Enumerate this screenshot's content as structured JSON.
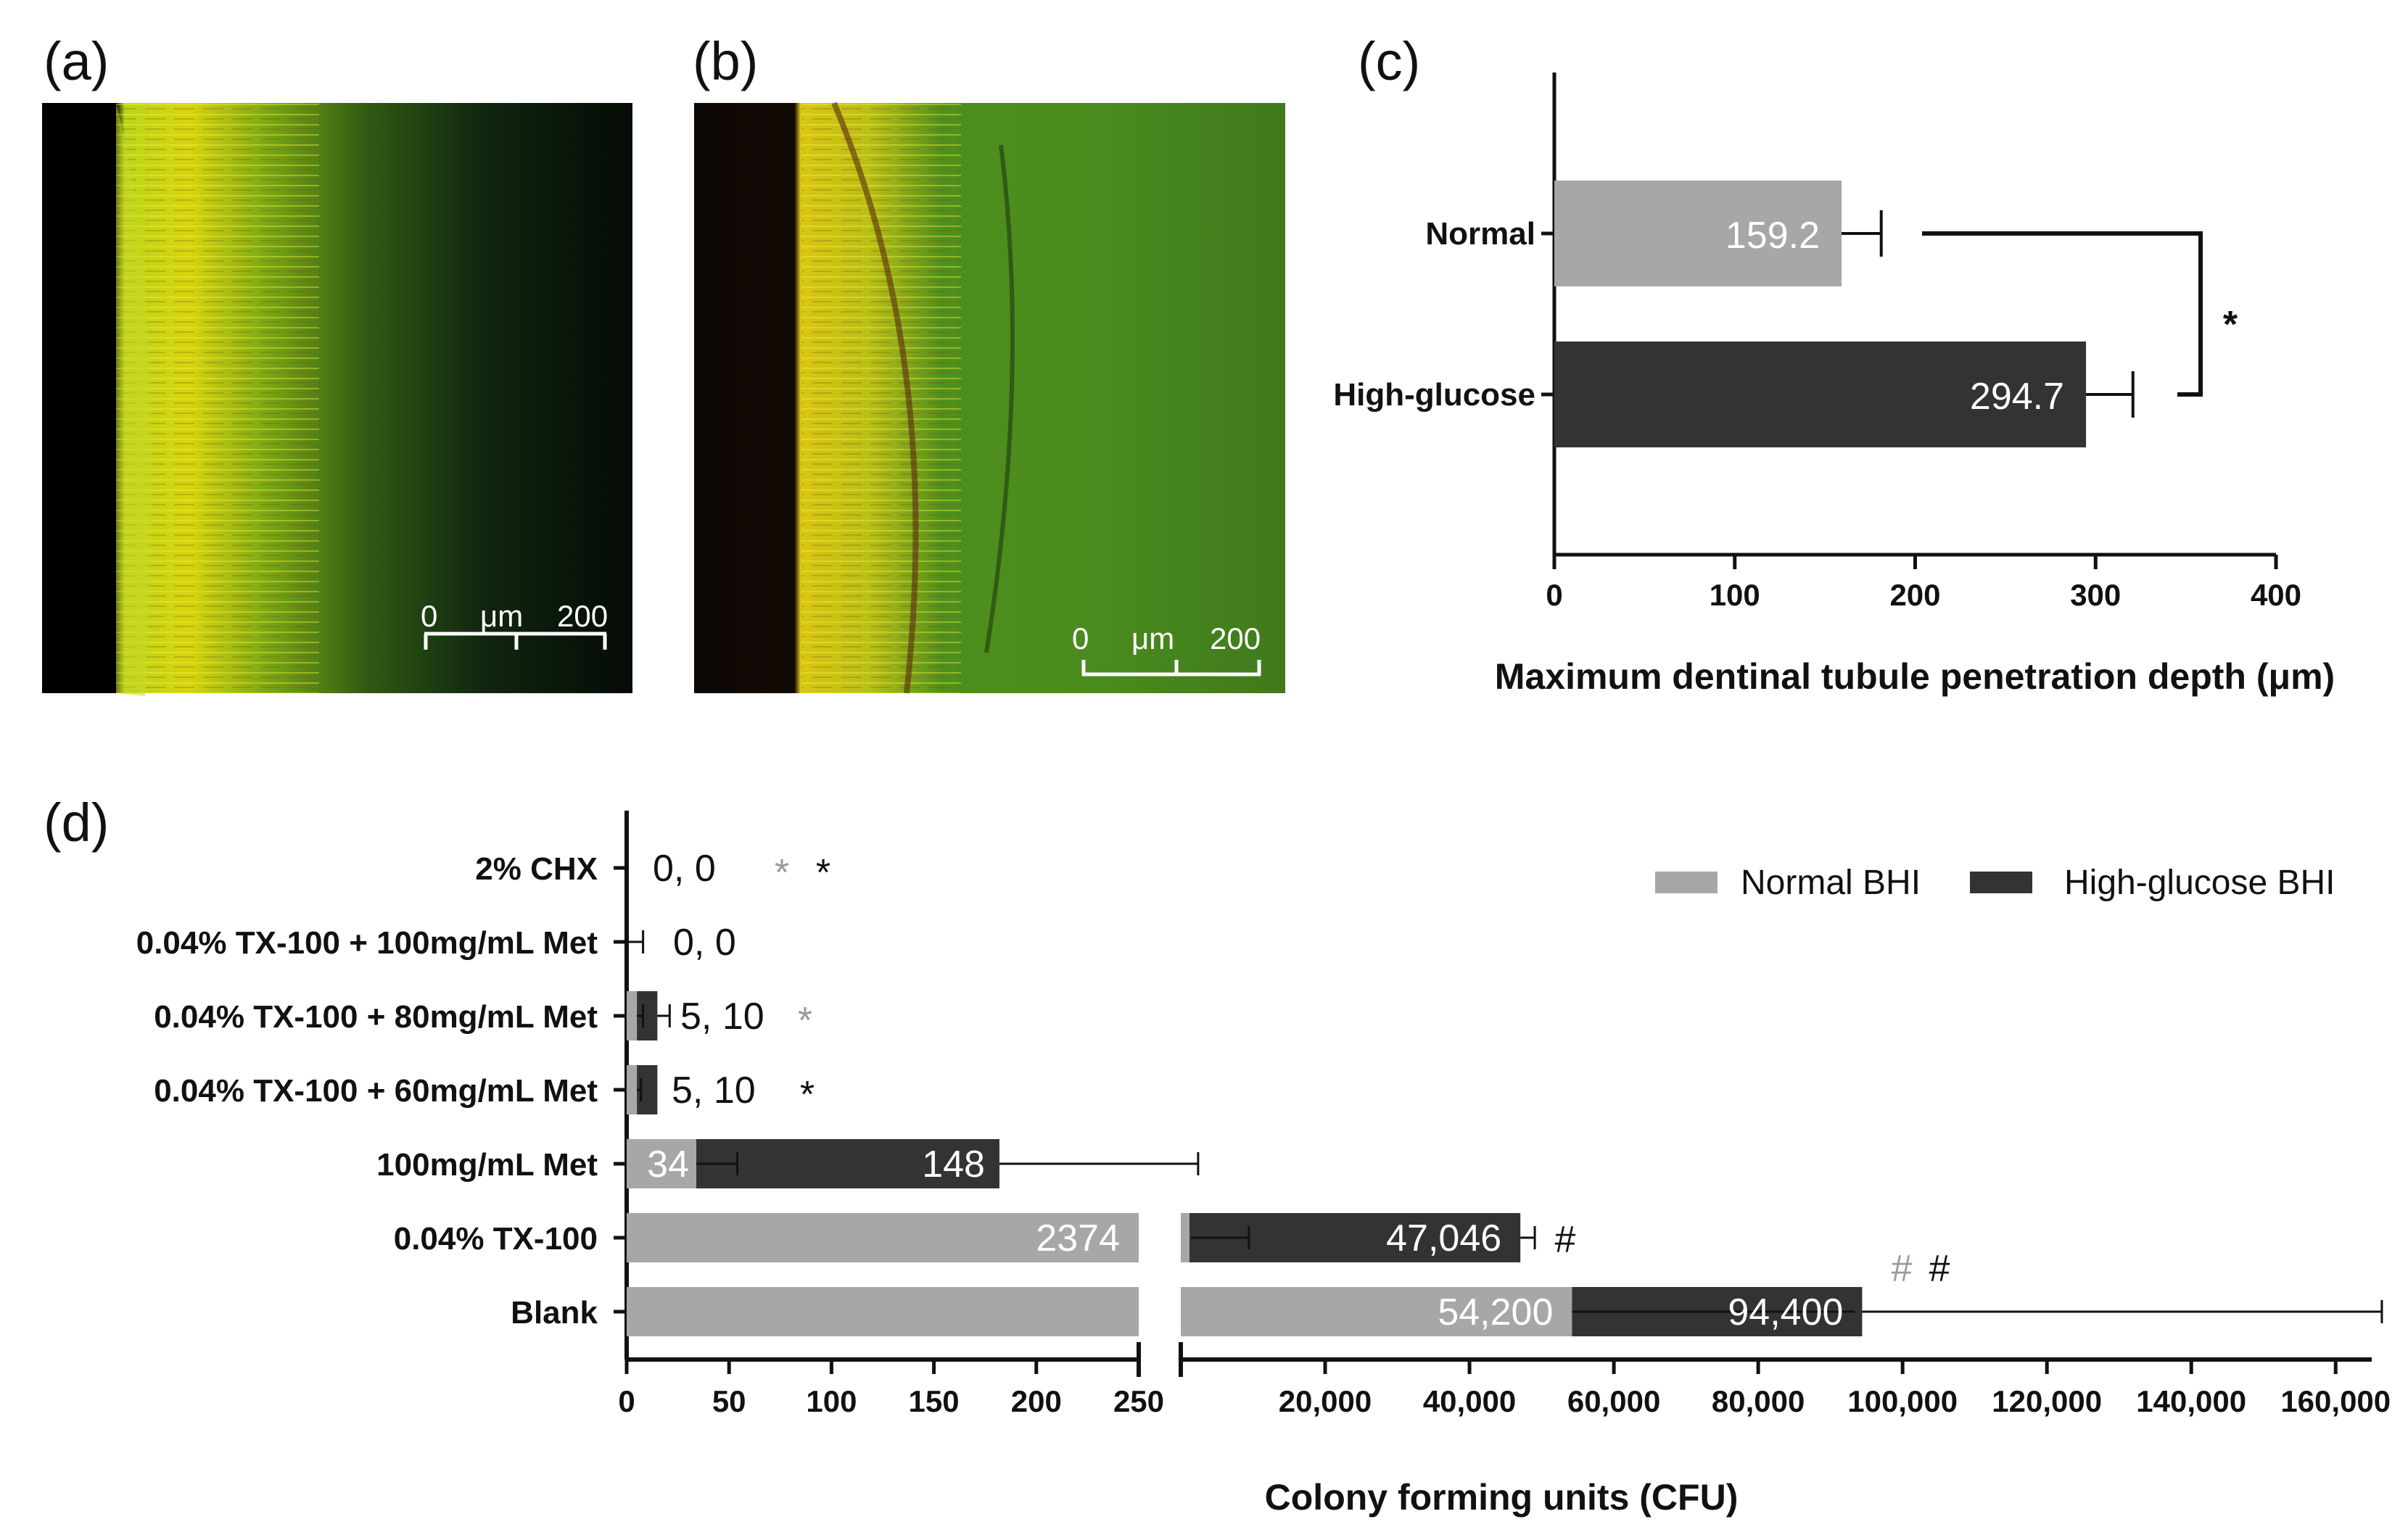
{
  "panels": {
    "a": "(a)",
    "b": "(b)",
    "c": "(c)",
    "d": "(d)"
  },
  "micrographs": [
    {
      "panel": "a",
      "scale_bar": {
        "start": "0",
        "unit": "μm",
        "end": "200"
      }
    },
    {
      "panel": "b",
      "scale_bar": {
        "start": "0",
        "unit": "μm",
        "end": "200"
      }
    }
  ],
  "colors": {
    "normal": "#a7a7a7",
    "high": "#333333",
    "axis": "#111111",
    "gray_mark": "#9a9a9a",
    "dark_mark": "#111111"
  },
  "chart_data": [
    {
      "panel": "c",
      "type": "bar",
      "orientation": "horizontal",
      "categories": [
        "Normal",
        "High-glucose"
      ],
      "values": [
        159.2,
        294.7
      ],
      "value_labels": [
        "159.2",
        "294.7"
      ],
      "errors": [
        22,
        26
      ],
      "xlabel": "Maximum dentinal tubule penetration depth (μm)",
      "xlim": [
        0,
        400
      ],
      "xticks": [
        "0",
        "100",
        "200",
        "300",
        "400"
      ],
      "significance": "*"
    },
    {
      "panel": "d",
      "type": "bar",
      "orientation": "horizontal",
      "xlabel": "Colony forming units (CFU)",
      "axis_break": {
        "low_range": [
          0,
          250
        ],
        "high_range": [
          0,
          165000
        ]
      },
      "xticks_low": [
        "0",
        "50",
        "100",
        "150",
        "200",
        "250"
      ],
      "xticks_high": [
        "20,000",
        "40,000",
        "60,000",
        "80,000",
        "100,000",
        "120,000",
        "140,000",
        "160,000"
      ],
      "legend": {
        "position": "top-right",
        "items": [
          "Normal BHI",
          "High-glucose BHI"
        ]
      },
      "categories": [
        "2% CHX",
        "0.04% TX-100 + 100mg/mL Met",
        "0.04% TX-100 + 80mg/mL Met",
        "0.04% TX-100 + 60mg/mL Met",
        "100mg/mL Met",
        "0.04% TX-100",
        "Blank"
      ],
      "series": [
        {
          "name": "Normal BHI",
          "values": [
            0,
            0,
            5,
            5,
            34,
            2374,
            54200
          ],
          "errors": [
            0,
            8,
            3,
            2,
            20,
            0,
            0
          ]
        },
        {
          "name": "High-glucose BHI",
          "values": [
            0,
            0,
            10,
            10,
            148,
            47046,
            94400
          ],
          "errors": [
            0,
            0,
            6,
            0,
            97,
            2000,
            72000
          ]
        }
      ],
      "bar_labels": [
        "0, 0",
        "0, 0",
        "5, 10",
        "5, 10",
        "",
        "",
        ""
      ],
      "inbar_labels": [
        {
          "row": 4,
          "normal": "34",
          "high": "148"
        },
        {
          "row": 5,
          "normal": "2374",
          "high": "47,046"
        },
        {
          "row": 6,
          "normal": "54,200",
          "high": "94,400"
        }
      ],
      "markers": [
        {
          "row": 0,
          "symbol": "*",
          "tone": "gray"
        },
        {
          "row": 0,
          "symbol": "*",
          "tone": "dark"
        },
        {
          "row": 2,
          "symbol": "*",
          "tone": "gray"
        },
        {
          "row": 3,
          "symbol": "*",
          "tone": "dark"
        },
        {
          "row": 5,
          "symbol": "#",
          "tone": "dark"
        },
        {
          "row": 6,
          "symbol": "#",
          "tone": "gray"
        },
        {
          "row": 6,
          "symbol": "#",
          "tone": "dark"
        }
      ]
    }
  ]
}
